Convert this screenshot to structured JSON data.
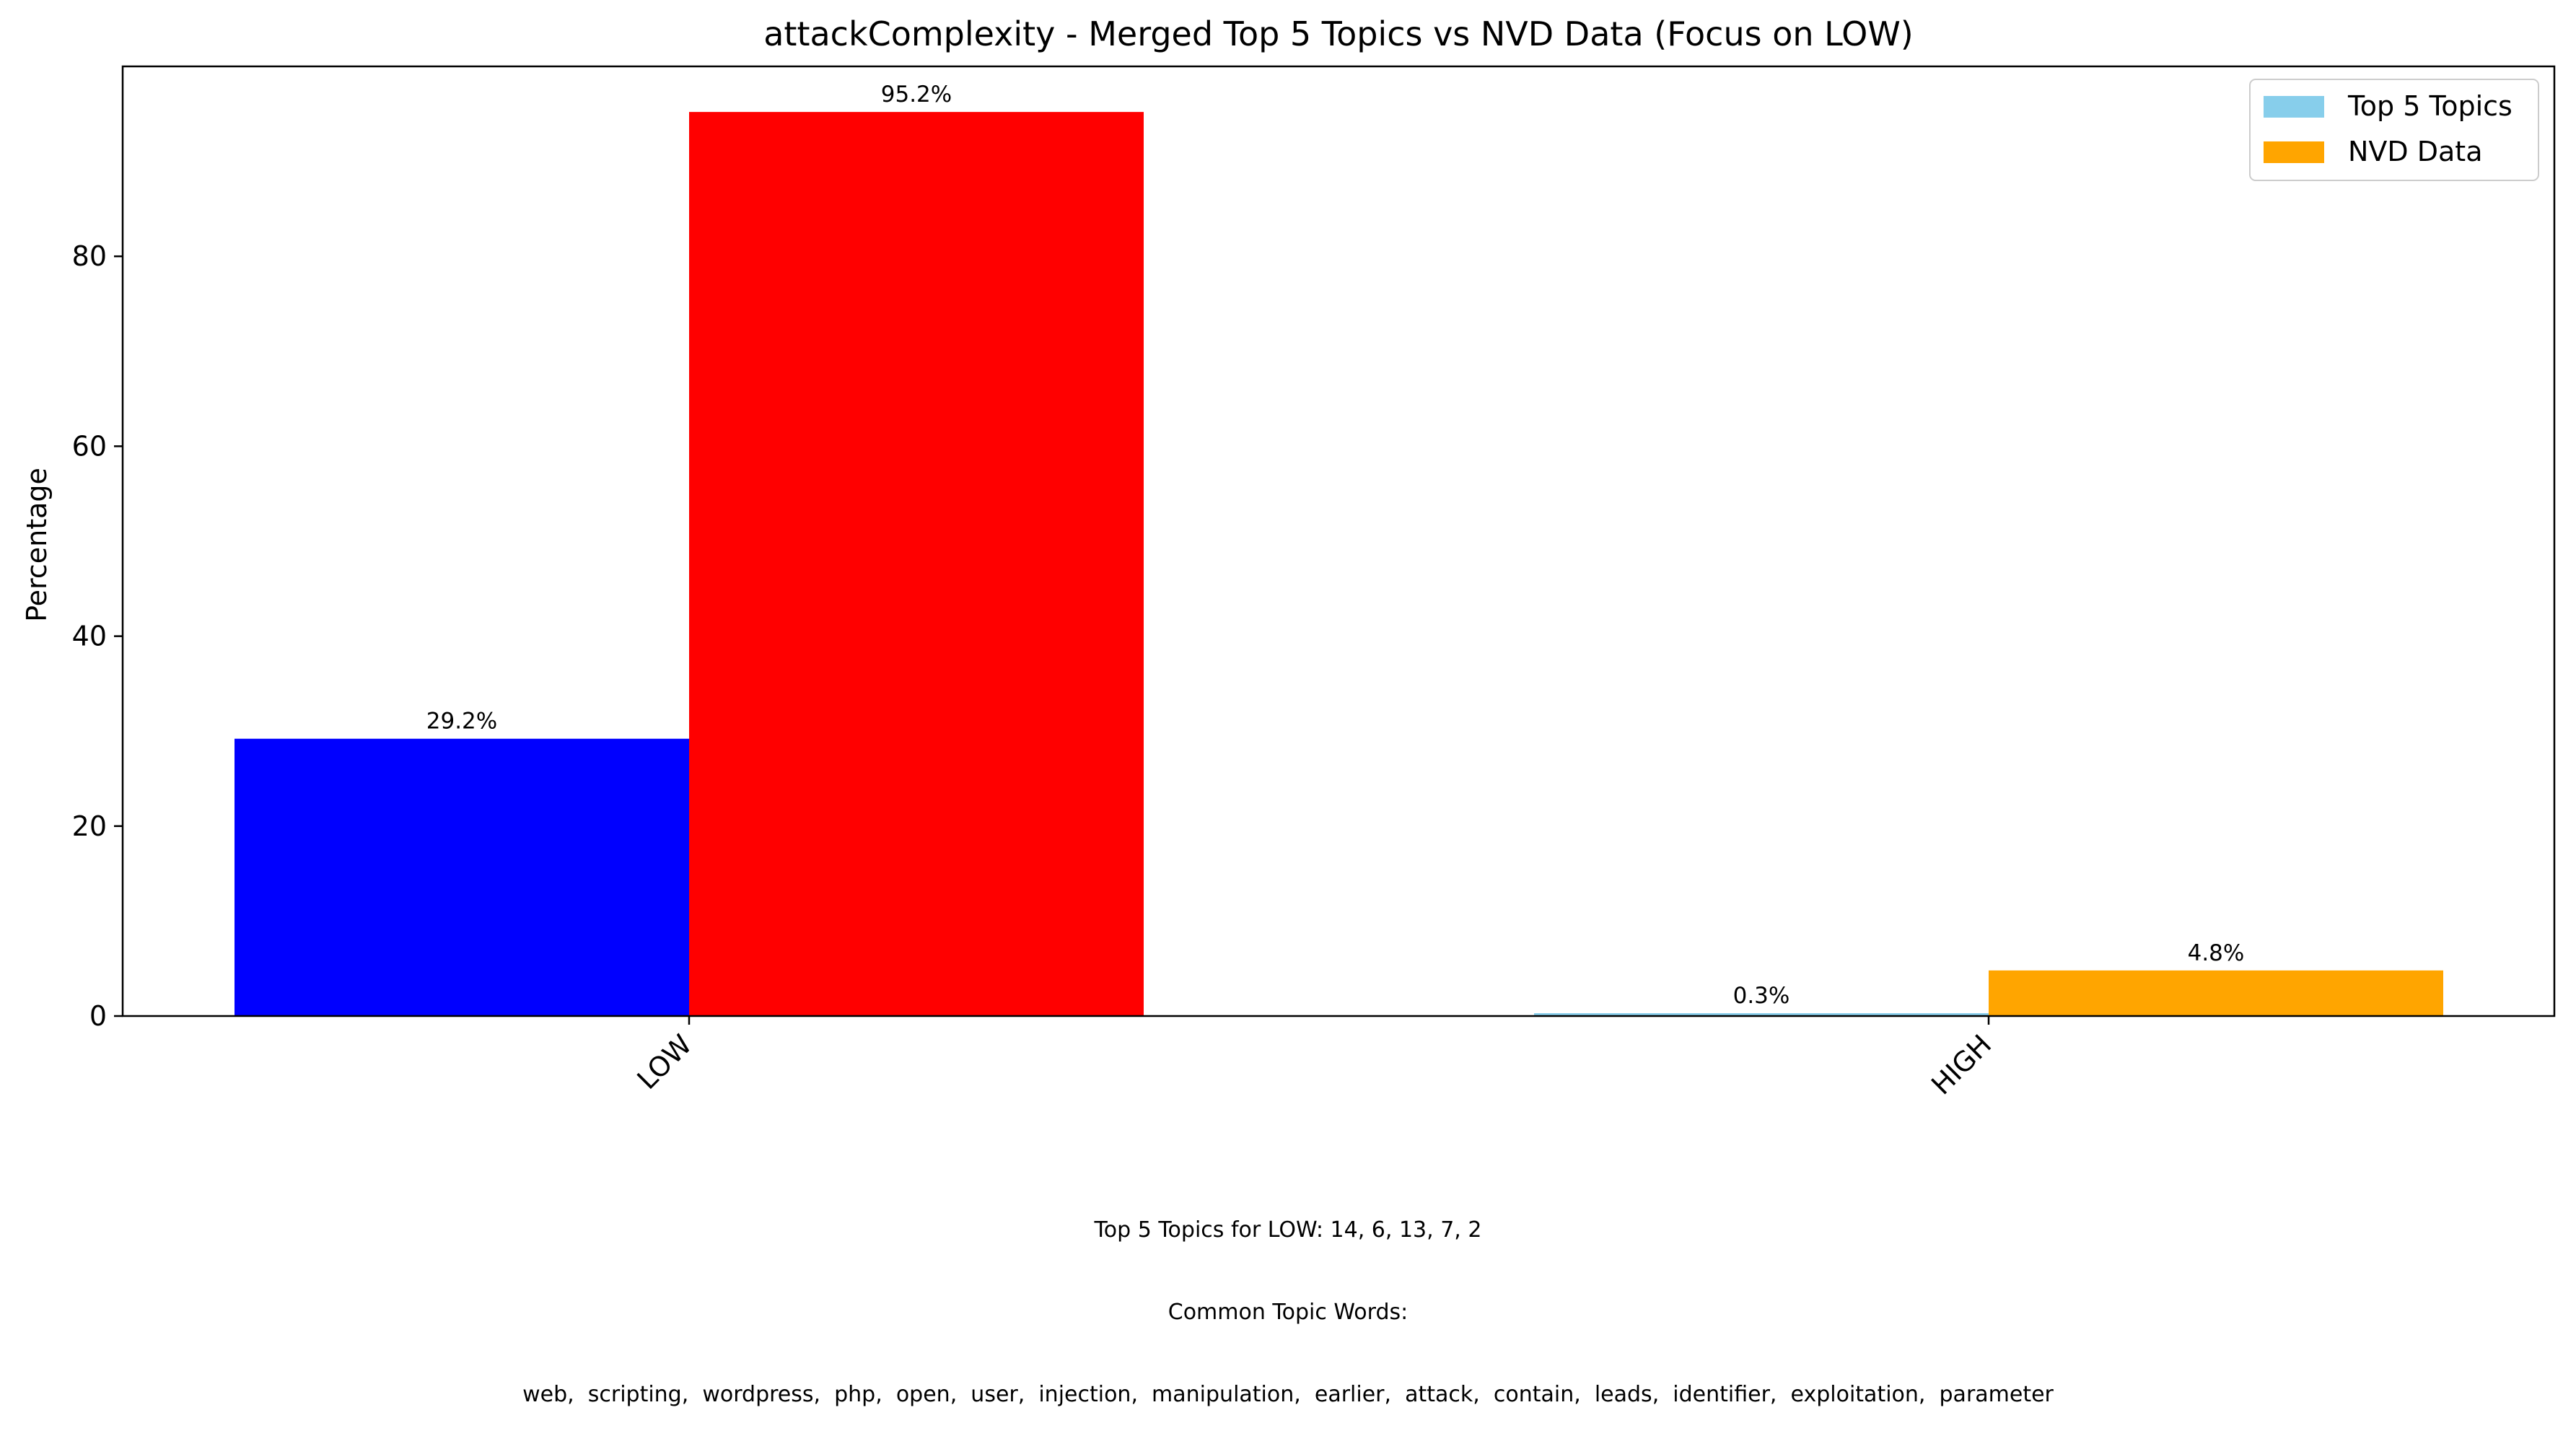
{
  "chart_data": {
    "type": "bar",
    "title": "attackComplexity - Merged Top 5 Topics vs NVD Data (Focus on LOW)",
    "xlabel": "",
    "ylabel": "Percentage",
    "categories": [
      "LOW",
      "HIGH"
    ],
    "ylim": [
      0,
      100
    ],
    "yticks": [
      0,
      20,
      40,
      60,
      80
    ],
    "grid": false,
    "legend_position": "top-right",
    "series": [
      {
        "name": "Top 5 Topics",
        "legend_color": "#87CEEB",
        "values": [
          29.2,
          0.3
        ],
        "bar_colors": [
          "#0000FF",
          "#87CEEB"
        ],
        "labels": [
          "29.2%",
          "0.3%"
        ]
      },
      {
        "name": "NVD Data",
        "legend_color": "#FFA500",
        "values": [
          95.2,
          4.8
        ],
        "bar_colors": [
          "#FF0000",
          "#FFA500"
        ],
        "labels": [
          "95.2%",
          "4.8%"
        ]
      }
    ]
  },
  "footnote": {
    "line1": "Top 5 Topics for LOW: 14, 6, 13, 7, 2",
    "line2": "Common Topic Words:",
    "line3": "web,  scripting,  wordpress,  php,  open,  user,  injection,  manipulation,  earlier,  attack,  contain,  leads,  identifier,  exploitation,  parameter"
  }
}
